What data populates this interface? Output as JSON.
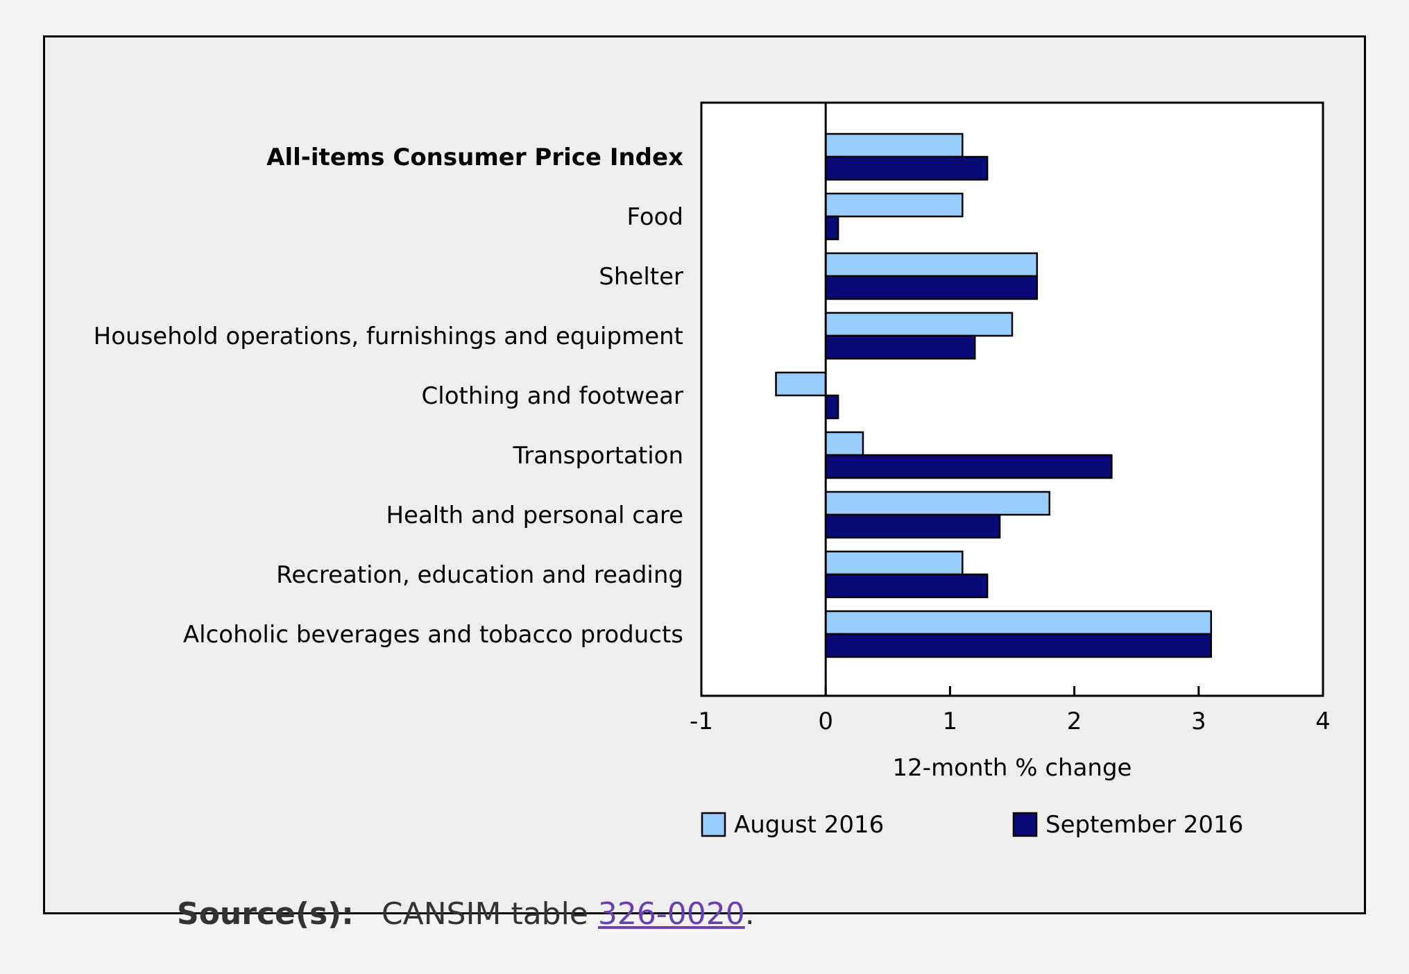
{
  "chart_data": {
    "type": "bar",
    "orientation": "horizontal",
    "categories": [
      "All-items Consumer Price Index",
      "Food",
      "Shelter",
      "Household operations, furnishings and equipment",
      "Clothing and footwear",
      "Transportation",
      "Health and personal care",
      "Recreation, education and reading",
      "Alcoholic beverages and tobacco products"
    ],
    "bold_categories": [
      "All-items Consumer Price Index"
    ],
    "series": [
      {
        "name": "August 2016",
        "color": "#99ccff",
        "values": [
          1.1,
          1.1,
          1.7,
          1.5,
          -0.4,
          0.3,
          1.8,
          1.1,
          3.1
        ]
      },
      {
        "name": "September 2016",
        "color": "#0a0a78",
        "values": [
          1.3,
          0.1,
          1.7,
          1.2,
          0.1,
          2.3,
          1.4,
          1.3,
          3.1
        ]
      }
    ],
    "xlabel": "12-month % change",
    "xlim": [
      -1,
      4
    ],
    "xticks": [
      "-1",
      "0",
      "1",
      "2",
      "3",
      "4"
    ],
    "legend_position": "bottom",
    "grid": false
  },
  "source": {
    "label": "Source(s):",
    "text": "CANSIM table",
    "link": "326-0020",
    "suffix": "."
  }
}
